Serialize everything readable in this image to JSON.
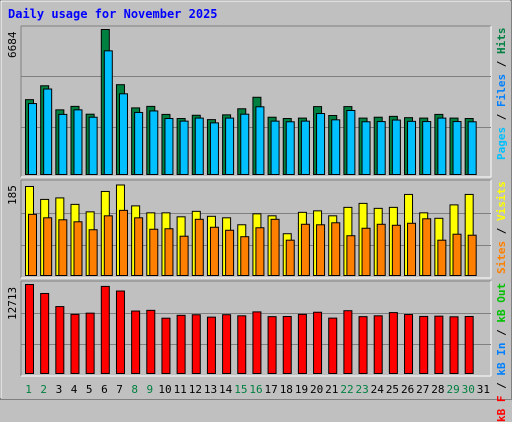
{
  "title": "Daily usage for November 2025",
  "colors": {
    "background": "#c0c0c0",
    "plot_background": "#c0c0c0",
    "hits": "#008040",
    "files": "#00c0ff",
    "visits": "#ffff00",
    "sites": "#ff8000",
    "kbin": "#0080ff",
    "kbout": "#00c000",
    "kbf": "#ff0000",
    "weekday_text": "#000000",
    "weekend_text": "#008040"
  },
  "right_labels": {
    "panel1": [
      {
        "text": "Pages",
        "color": "#00c0ff"
      },
      {
        "text": " / ",
        "color": "#000000"
      },
      {
        "text": "Files",
        "color": "#0080ff"
      },
      {
        "text": " / ",
        "color": "#000000"
      },
      {
        "text": "Hits",
        "color": "#008040"
      }
    ],
    "panel2": [
      {
        "text": "Sites",
        "color": "#ff8000"
      },
      {
        "text": " / ",
        "color": "#000000"
      },
      {
        "text": "Visits",
        "color": "#ffff00"
      }
    ],
    "panel3": [
      {
        "text": "kB F",
        "color": "#ff0000"
      },
      {
        "text": " / ",
        "color": "#000000"
      },
      {
        "text": "kB In",
        "color": "#0080ff"
      },
      {
        "text": " / ",
        "color": "#000000"
      },
      {
        "text": "kB Out",
        "color": "#00c000"
      }
    ]
  },
  "chart_data": [
    {
      "type": "bar",
      "ymax_label": "6684",
      "ylim": [
        0,
        6684
      ],
      "categories": [
        "1",
        "2",
        "3",
        "4",
        "5",
        "6",
        "7",
        "8",
        "9",
        "10",
        "11",
        "12",
        "13",
        "14",
        "15",
        "16",
        "17",
        "18",
        "19",
        "20",
        "21",
        "22",
        "23",
        "24",
        "25",
        "26",
        "27",
        "28",
        "29",
        "30",
        "31"
      ],
      "series": [
        {
          "name": "Hits",
          "values": [
            3450,
            4090,
            2980,
            3140,
            2780,
            6684,
            4140,
            3070,
            3140,
            2770,
            2580,
            2730,
            2530,
            2750,
            3030,
            3560,
            2640,
            2580,
            2600,
            3130,
            2720,
            3130,
            2600,
            2640,
            2680,
            2620,
            2600,
            2770,
            2600,
            2580,
            null
          ]
        },
        {
          "name": "Files",
          "values": [
            3270,
            3940,
            2770,
            2980,
            2640,
            5700,
            3720,
            2860,
            2930,
            2580,
            2460,
            2600,
            2380,
            2600,
            2780,
            3120,
            2460,
            2430,
            2460,
            2810,
            2520,
            2950,
            2430,
            2440,
            2510,
            2450,
            2440,
            2600,
            2440,
            2430,
            null
          ]
        }
      ]
    },
    {
      "type": "bar",
      "ymax_label": "185",
      "ylim": [
        0,
        185
      ],
      "categories": [
        "1",
        "2",
        "3",
        "4",
        "5",
        "6",
        "7",
        "8",
        "9",
        "10",
        "11",
        "12",
        "13",
        "14",
        "15",
        "16",
        "17",
        "18",
        "19",
        "20",
        "21",
        "22",
        "23",
        "24",
        "25",
        "26",
        "27",
        "28",
        "29",
        "30",
        "31"
      ],
      "series": [
        {
          "name": "Visits",
          "values": [
            179,
            153,
            156,
            143,
            128,
            169,
            182,
            140,
            126,
            126,
            118,
            129,
            119,
            116,
            102,
            124,
            120,
            84,
            127,
            130,
            120,
            137,
            145,
            135,
            137,
            163,
            126,
            115,
            142,
            163,
            null
          ]
        },
        {
          "name": "Sites",
          "values": [
            123,
            116,
            112,
            108,
            92,
            120,
            131,
            116,
            93,
            94,
            79,
            113,
            97,
            91,
            78,
            96,
            113,
            71,
            103,
            102,
            106,
            80,
            95,
            103,
            101,
            105,
            114,
            71,
            83,
            81,
            null
          ]
        }
      ]
    },
    {
      "type": "bar",
      "ymax_label": "12713",
      "ylim": [
        0,
        12713
      ],
      "categories": [
        "1",
        "2",
        "3",
        "4",
        "5",
        "6",
        "7",
        "8",
        "9",
        "10",
        "11",
        "12",
        "13",
        "14",
        "15",
        "16",
        "17",
        "18",
        "19",
        "20",
        "21",
        "22",
        "23",
        "24",
        "25",
        "26",
        "27",
        "28",
        "29",
        "30",
        "31"
      ],
      "series": [
        {
          "name": "kB F",
          "values": [
            12713,
            11430,
            9560,
            8450,
            8620,
            12440,
            11780,
            8920,
            9020,
            7900,
            8310,
            8390,
            8050,
            8400,
            8240,
            8800,
            8120,
            8140,
            8450,
            8750,
            7910,
            8970,
            8120,
            8240,
            8700,
            8420,
            8150,
            8190,
            8100,
            8140,
            null
          ]
        }
      ]
    }
  ],
  "weekend_days": [
    1,
    2,
    8,
    9,
    15,
    16,
    22,
    23,
    29,
    30
  ],
  "day_labels": [
    "1",
    "2",
    "3",
    "4",
    "5",
    "6",
    "7",
    "8",
    "9",
    "10",
    "11",
    "12",
    "13",
    "14",
    "15",
    "16",
    "17",
    "18",
    "19",
    "20",
    "21",
    "22",
    "23",
    "24",
    "25",
    "26",
    "27",
    "28",
    "29",
    "30",
    "31"
  ]
}
